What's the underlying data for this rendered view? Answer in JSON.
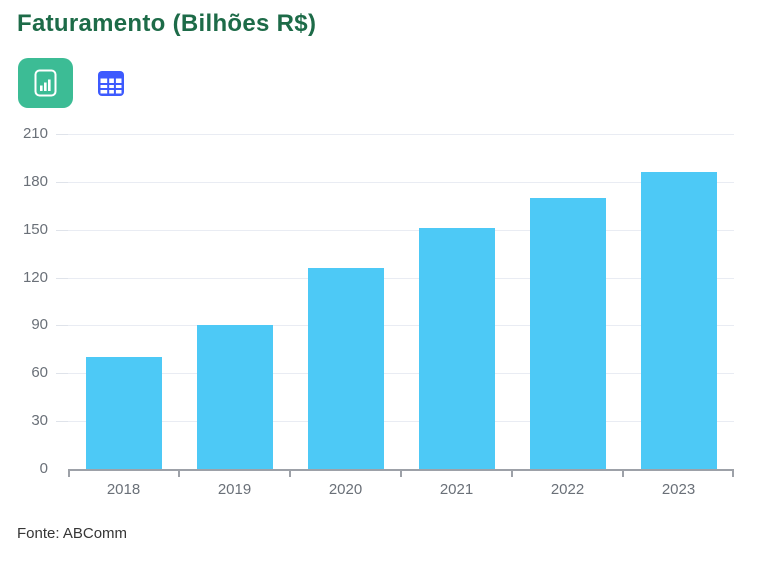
{
  "header": {
    "title": "Faturamento (Bilhões R$)",
    "title_color": "#1d6b48"
  },
  "toolbar": {
    "chart_view_button": {
      "icon": "bar-chart-icon",
      "active": true,
      "bg_color": "#3cbc95"
    },
    "table_view_button": {
      "icon": "table-icon",
      "active": false,
      "color": "#3d5afe"
    }
  },
  "chart_data": {
    "type": "bar",
    "title": "Faturamento (Bilhões R$)",
    "categories": [
      "2018",
      "2019",
      "2020",
      "2021",
      "2022",
      "2023"
    ],
    "values": [
      70,
      90,
      126,
      151,
      170,
      186
    ],
    "series_name": "Faturamento (Bilhões R$)",
    "xlabel": "",
    "ylabel": "",
    "ylim": [
      0,
      210
    ],
    "yticks": [
      0,
      30,
      60,
      90,
      120,
      150,
      180,
      210
    ],
    "grid": true,
    "legend_position": "none",
    "bar_color": "#4dc9f6",
    "grid_color": "#e9ecf3",
    "axis_color": "#9da1a8",
    "tick_label_color": "#6a7078"
  },
  "footer": {
    "source": "Fonte: ABComm"
  }
}
